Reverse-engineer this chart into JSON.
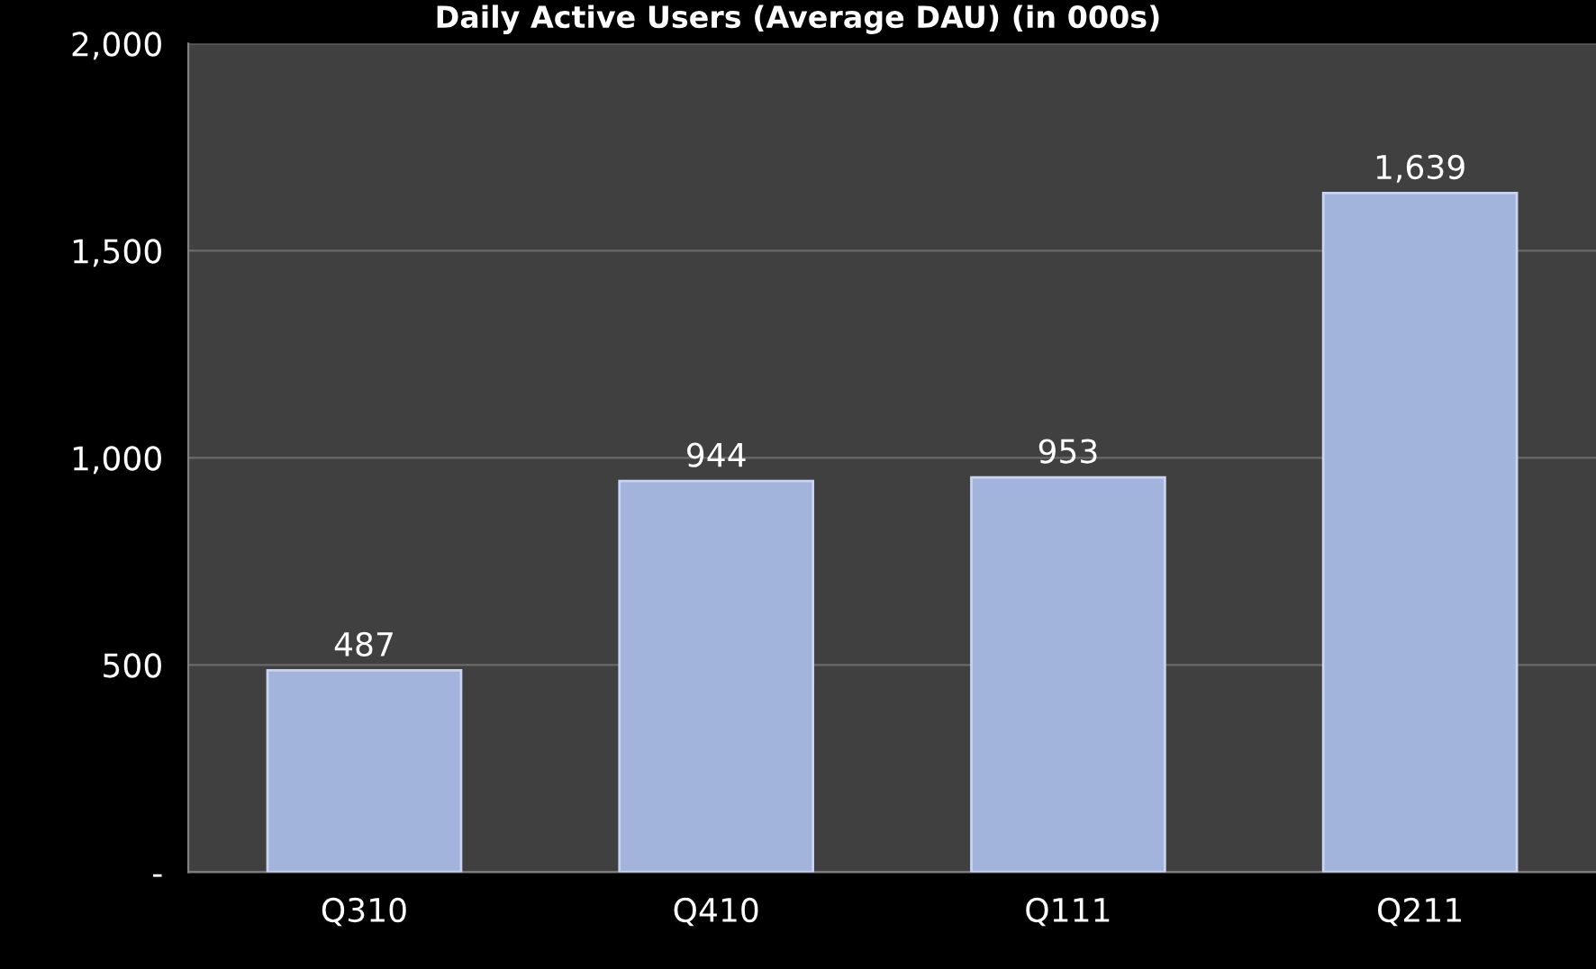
{
  "chart_data": {
    "type": "bar",
    "title": "Daily Active Users (Average DAU) (in 000s)",
    "categories": [
      "Q310",
      "Q410",
      "Q111",
      "Q211"
    ],
    "values": [
      487,
      944,
      953,
      1639
    ],
    "value_labels": [
      "487",
      "944",
      "953",
      "1,639"
    ],
    "color": "#a3b4dc",
    "ylim": [
      0,
      2000
    ],
    "yticks": [
      {
        "value": 0,
        "label": "-"
      },
      {
        "value": 500,
        "label": "500"
      },
      {
        "value": 1000,
        "label": "1,000"
      },
      {
        "value": 1500,
        "label": "1,500"
      },
      {
        "value": 2000,
        "label": "2,000"
      }
    ],
    "grid": "y"
  }
}
